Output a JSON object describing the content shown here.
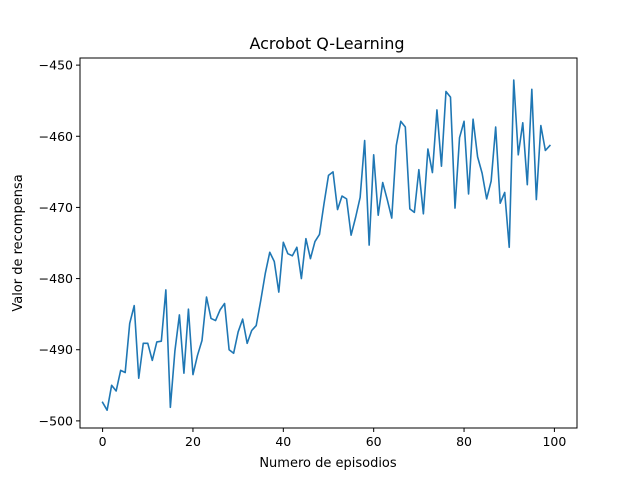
{
  "chart_data": {
    "type": "line",
    "title": "Acrobot Q-Learning",
    "xlabel": "Numero de episodios",
    "ylabel": "Valor de recompensa",
    "xlim": [
      -5,
      105
    ],
    "ylim": [
      -501,
      -449
    ],
    "grid": false,
    "x_ticks": [
      0,
      20,
      40,
      60,
      80,
      100
    ],
    "y_ticks": [
      -500,
      -490,
      -480,
      -470,
      -460,
      -450
    ],
    "x_tick_labels": [
      "0",
      "20",
      "40",
      "60",
      "80",
      "100"
    ],
    "y_tick_labels": [
      "−500",
      "−490",
      "−480",
      "−470",
      "−460",
      "−450"
    ],
    "series": [
      {
        "color": "#1f77b4",
        "x": [
          0,
          1,
          2,
          3,
          4,
          5,
          6,
          7,
          8,
          9,
          10,
          11,
          12,
          13,
          14,
          15,
          16,
          17,
          18,
          19,
          20,
          21,
          22,
          23,
          24,
          25,
          26,
          27,
          28,
          29,
          30,
          31,
          32,
          33,
          34,
          35,
          36,
          37,
          38,
          39,
          40,
          41,
          42,
          43,
          44,
          45,
          46,
          47,
          48,
          49,
          50,
          51,
          52,
          53,
          54,
          55,
          56,
          57,
          58,
          59,
          60,
          61,
          62,
          63,
          64,
          65,
          66,
          67,
          68,
          69,
          70,
          71,
          72,
          73,
          74,
          75,
          76,
          77,
          78,
          79,
          80,
          81,
          82,
          83,
          84,
          85,
          86,
          87,
          88,
          89,
          90,
          91,
          92,
          93,
          94,
          95,
          96,
          97,
          98,
          99
        ],
        "values": [
          -497.4,
          -498.5,
          -495.0,
          -495.8,
          -492.9,
          -493.2,
          -486.3,
          -483.8,
          -494.0,
          -489.1,
          -489.1,
          -491.5,
          -488.9,
          -488.8,
          -481.6,
          -498.1,
          -490.2,
          -485.1,
          -493.3,
          -484.3,
          -493.5,
          -490.8,
          -488.7,
          -482.6,
          -485.6,
          -485.9,
          -484.4,
          -483.5,
          -490.0,
          -490.5,
          -487.5,
          -485.7,
          -489.1,
          -487.3,
          -486.6,
          -483.1,
          -479.3,
          -476.3,
          -477.6,
          -481.9,
          -474.9,
          -476.5,
          -476.8,
          -475.6,
          -480.0,
          -474.4,
          -477.2,
          -474.8,
          -473.8,
          -469.5,
          -465.5,
          -465.0,
          -470.3,
          -468.4,
          -468.8,
          -473.9,
          -471.4,
          -468.6,
          -460.6,
          -475.3,
          -462.6,
          -471.1,
          -466.5,
          -468.9,
          -471.5,
          -461.3,
          -457.9,
          -458.7,
          -470.2,
          -470.7,
          -464.7,
          -470.9,
          -461.8,
          -465.1,
          -456.3,
          -464.2,
          -453.7,
          -454.5,
          -470.1,
          -460.2,
          -457.9,
          -468.1,
          -457.6,
          -462.9,
          -465.2,
          -468.8,
          -466.3,
          -458.7,
          -469.4,
          -467.9,
          -475.6,
          -452.1,
          -462.6,
          -458.1,
          -466.8,
          -453.4,
          -468.9,
          -458.5,
          -462.0,
          -461.3
        ]
      }
    ]
  }
}
